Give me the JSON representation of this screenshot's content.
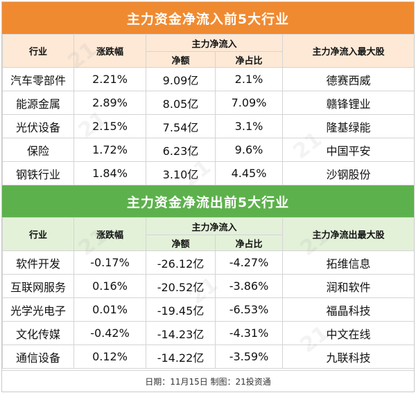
{
  "inflow": {
    "title": "主力资金净流入前5大行业",
    "headers": {
      "industry": "行业",
      "change": "涨跌幅",
      "main_net": "主力净流入",
      "net_amount": "净额",
      "net_ratio": "净占比",
      "top_stock": "主力净流入最大股"
    },
    "rows": [
      {
        "industry": "汽车零部件",
        "change": "2.21%",
        "amount": "9.09亿",
        "ratio": "2.1%",
        "stock": "德赛西威"
      },
      {
        "industry": "能源金属",
        "change": "2.89%",
        "amount": "8.05亿",
        "ratio": "7.09%",
        "stock": "赣锋锂业"
      },
      {
        "industry": "光伏设备",
        "change": "2.15%",
        "amount": "7.54亿",
        "ratio": "3.1%",
        "stock": "隆基绿能"
      },
      {
        "industry": "保险",
        "change": "1.72%",
        "amount": "6.23亿",
        "ratio": "9.6%",
        "stock": "中国平安"
      },
      {
        "industry": "钢铁行业",
        "change": "1.84%",
        "amount": "3.10亿",
        "ratio": "4.45%",
        "stock": "沙钢股份"
      }
    ]
  },
  "outflow": {
    "title": "主力资金净流出前5大行业",
    "headers": {
      "industry": "行业",
      "change": "涨跌幅",
      "main_net": "主力净流入",
      "net_amount": "净额",
      "net_ratio": "净占比",
      "top_stock": "主力净流出最大股"
    },
    "rows": [
      {
        "industry": "软件开发",
        "change": "-0.17%",
        "amount": "-26.12亿",
        "ratio": "-4.27%",
        "stock": "拓维信息"
      },
      {
        "industry": "互联网服务",
        "change": "0.16%",
        "amount": "-20.52亿",
        "ratio": "-3.86%",
        "stock": "润和软件"
      },
      {
        "industry": "光学光电子",
        "change": "0.01%",
        "amount": "-19.45亿",
        "ratio": "-6.53%",
        "stock": "福晶科技"
      },
      {
        "industry": "文化传媒",
        "change": "-0.42%",
        "amount": "-14.23亿",
        "ratio": "-4.31%",
        "stock": "中文在线"
      },
      {
        "industry": "通信设备",
        "change": "0.12%",
        "amount": "-14.22亿",
        "ratio": "-3.59%",
        "stock": "九联科技"
      }
    ]
  },
  "footer": "日期：11月15日 制图：21投资通",
  "colors": {
    "inflow_banner": "#f08a30",
    "outflow_banner": "#5db14c"
  }
}
